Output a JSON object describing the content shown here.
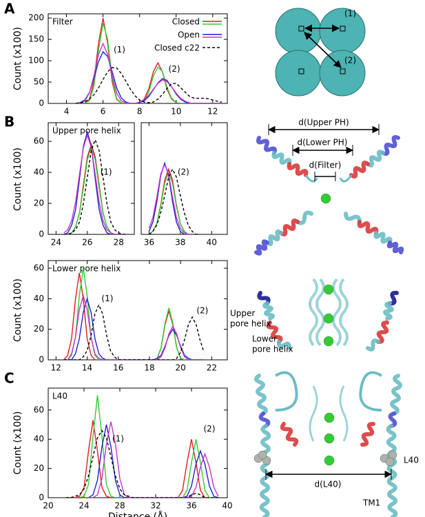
{
  "panel_labels": [
    "A",
    "B",
    "C"
  ],
  "chart_data": [
    {
      "type": "line",
      "title": "Filter",
      "ylabel": "Count (x100)",
      "x": [
        4.5,
        4.75,
        5,
        5.25,
        5.5,
        5.75,
        6,
        6.25,
        6.5,
        6.75,
        7,
        7.25,
        7.5,
        7.75,
        8,
        8.25,
        8.5,
        8.75,
        9,
        9.25,
        9.5,
        9.75,
        10,
        10.25,
        10.5,
        10.75,
        11,
        11.25,
        11.5,
        11.75,
        12,
        12.25,
        12.5
      ],
      "series": [
        {
          "color": "#e41a1c",
          "values": [
            0,
            0,
            1,
            9,
            50,
            141,
            200,
            141,
            50,
            9,
            1,
            0,
            0,
            0,
            2,
            10,
            34,
            74,
            95,
            74,
            34,
            10,
            2,
            0,
            0,
            0,
            0,
            0,
            0,
            0,
            0,
            0,
            0
          ]
        },
        {
          "color": "#2fcc2f",
          "values": [
            0,
            0,
            1,
            6,
            40,
            125,
            188,
            150,
            58,
            11,
            1,
            0,
            0,
            0,
            2,
            7,
            27,
            64,
            85,
            75,
            38,
            12,
            2,
            0,
            0,
            0,
            0,
            0,
            0,
            0,
            0,
            0,
            0
          ]
        },
        {
          "color": "#1f1fd0",
          "values": [
            0,
            2,
            8,
            25,
            58,
            98,
            121,
            110,
            74,
            36,
            13,
            3,
            0,
            0,
            2,
            6,
            16,
            32,
            48,
            58,
            54,
            39,
            22,
            10,
            3,
            0,
            0,
            0,
            0,
            0,
            0,
            0,
            0
          ]
        },
        {
          "color": "#c933c9",
          "values": [
            0,
            0,
            6,
            24,
            64,
            115,
            140,
            115,
            64,
            24,
            6,
            1,
            0,
            0,
            3,
            9,
            19,
            33,
            47,
            55,
            51,
            39,
            24,
            12,
            5,
            1,
            0,
            0,
            0,
            0,
            0,
            0,
            0
          ]
        },
        {
          "color": "#000000",
          "dash": true,
          "values": [
            0,
            1,
            4,
            10,
            20,
            36,
            56,
            74,
            84,
            83,
            70,
            52,
            33,
            18,
            8,
            3,
            2,
            3,
            10,
            21,
            35,
            46,
            47,
            37,
            26,
            16,
            12,
            12,
            12,
            11,
            8,
            5,
            3
          ]
        }
      ],
      "legend": [
        {
          "label": "Closed",
          "colors": [
            "#e41a1c",
            "#2fcc2f"
          ]
        },
        {
          "label": "Open",
          "colors": [
            "#1f1fd0",
            "#c933c9"
          ]
        },
        {
          "label": "Closed c22",
          "colors": [
            "#000000"
          ],
          "dash": true
        }
      ],
      "annotations": [
        "(1)",
        "(2)"
      ],
      "xlim": [
        3,
        12.8
      ],
      "ylim": [
        0,
        210
      ],
      "xticks": [
        4,
        6,
        8,
        10,
        12
      ],
      "yticks": [
        0,
        50,
        100,
        150,
        200
      ]
    },
    {
      "type": "line",
      "title": "Upper pore helix",
      "ylabel": "Count (x100)",
      "x": [
        24.5,
        24.75,
        25,
        25.25,
        25.5,
        25.75,
        26,
        26.25,
        26.5,
        26.75,
        27,
        27.25,
        27.5,
        27.75,
        28,
        28.25,
        28.5
      ],
      "series": [
        {
          "color": "#e41a1c",
          "values": [
            0,
            0,
            1,
            5,
            14,
            32,
            50,
            58,
            50,
            32,
            14,
            5,
            1,
            0,
            0,
            0,
            0
          ]
        },
        {
          "color": "#2fcc2f",
          "values": [
            0,
            0,
            1,
            5,
            14,
            30,
            48,
            56,
            48,
            30,
            14,
            5,
            1,
            0,
            0,
            0,
            0
          ]
        },
        {
          "color": "#1f1fd0",
          "values": [
            0,
            1,
            6,
            16,
            36,
            57,
            66,
            57,
            36,
            16,
            6,
            1,
            0,
            0,
            0,
            0,
            0
          ]
        },
        {
          "color": "#c933c9",
          "values": [
            1,
            3,
            9,
            21,
            39,
            56,
            64,
            56,
            39,
            21,
            9,
            3,
            1,
            0,
            0,
            0,
            0
          ]
        },
        {
          "color": "#000000",
          "dash": true,
          "values": [
            0,
            0,
            1,
            3,
            8,
            20,
            37,
            54,
            61,
            54,
            37,
            20,
            8,
            3,
            1,
            0,
            0
          ]
        }
      ],
      "annotations": [
        "(1)"
      ],
      "xlim": [
        23.5,
        29
      ],
      "ylim": [
        0,
        72
      ],
      "xticks": [
        24,
        26,
        28
      ],
      "yticks": [
        0,
        20,
        40,
        60
      ]
    },
    {
      "type": "line",
      "x": [
        36,
        36.25,
        36.5,
        36.75,
        37,
        37.25,
        37.5,
        37.75,
        38,
        38.25,
        38.5,
        38.75,
        39,
        39.25
      ],
      "series": [
        {
          "color": "#e41a1c",
          "values": [
            0,
            2,
            7,
            19,
            35,
            42,
            35,
            19,
            7,
            2,
            0,
            0,
            0,
            0
          ]
        },
        {
          "color": "#2fcc2f",
          "values": [
            0,
            2,
            7,
            18,
            33,
            40,
            33,
            18,
            7,
            2,
            0,
            0,
            0,
            0
          ]
        },
        {
          "color": "#1f1fd0",
          "values": [
            2,
            8,
            21,
            38,
            46,
            38,
            21,
            8,
            2,
            0,
            0,
            0,
            0,
            0
          ]
        },
        {
          "color": "#c933c9",
          "values": [
            4,
            11,
            24,
            39,
            45,
            39,
            24,
            11,
            4,
            1,
            0,
            0,
            0,
            0
          ]
        },
        {
          "color": "#000000",
          "dash": true,
          "values": [
            0,
            2,
            6,
            14,
            25,
            37,
            42,
            37,
            25,
            14,
            6,
            2,
            0,
            0
          ]
        }
      ],
      "annotations": [
        "(2)"
      ],
      "xlim": [
        35.5,
        41
      ],
      "ylim": [
        0,
        72
      ],
      "xticks": [
        36,
        38,
        40
      ]
    },
    {
      "type": "line",
      "title": "Lower pore helix",
      "ylabel": "Count (x100)",
      "x": [
        12.5,
        12.75,
        13,
        13.25,
        13.5,
        13.75,
        14,
        14.25,
        14.5,
        14.75,
        15,
        15.25,
        15.5,
        15.75,
        16,
        16.25,
        16.5,
        16.75,
        17,
        17.25,
        17.5,
        17.75,
        18,
        18.25,
        18.5,
        18.75,
        19,
        19.25,
        19.5,
        19.75,
        20,
        20.25,
        20.5,
        20.75,
        21,
        21.25,
        21.5
      ],
      "series": [
        {
          "color": "#e41a1c",
          "values": [
            0,
            3,
            14,
            40,
            57,
            40,
            14,
            3,
            0,
            0,
            0,
            0,
            0,
            0,
            0,
            0,
            0,
            0,
            0,
            0,
            0,
            0,
            0,
            0,
            1,
            8,
            23,
            32,
            23,
            8,
            1,
            0,
            0,
            0,
            0,
            0,
            0
          ]
        },
        {
          "color": "#2fcc2f",
          "values": [
            0,
            0,
            3,
            15,
            42,
            60,
            42,
            15,
            3,
            0,
            0,
            0,
            0,
            0,
            0,
            0,
            0,
            0,
            0,
            0,
            0,
            0,
            0,
            0,
            1,
            8,
            24,
            34,
            24,
            8,
            1,
            0,
            0,
            0,
            0,
            0,
            0
          ]
        },
        {
          "color": "#1f1fd0",
          "values": [
            0,
            0,
            0,
            4,
            14,
            31,
            40,
            31,
            14,
            4,
            1,
            0,
            0,
            0,
            0,
            0,
            0,
            0,
            0,
            0,
            0,
            0,
            0,
            0,
            1,
            3,
            9,
            16,
            20,
            16,
            9,
            3,
            1,
            0,
            0,
            0,
            0
          ]
        },
        {
          "color": "#c933c9",
          "values": [
            0,
            0,
            4,
            15,
            33,
            42,
            33,
            15,
            4,
            1,
            0,
            0,
            0,
            0,
            0,
            0,
            0,
            0,
            0,
            0,
            0,
            0,
            0,
            0,
            0,
            2,
            8,
            17,
            22,
            17,
            8,
            2,
            0,
            0,
            0,
            0,
            0
          ]
        },
        {
          "color": "#000000",
          "dash": true,
          "values": [
            0,
            0,
            0,
            0,
            0,
            2,
            6,
            16,
            30,
            36,
            30,
            16,
            6,
            2,
            0,
            0,
            0,
            0,
            0,
            0,
            0,
            0,
            0,
            0,
            0,
            0,
            0,
            0,
            0,
            1,
            5,
            13,
            23,
            28,
            23,
            13,
            5
          ]
        }
      ],
      "annotations": [
        "(1)",
        "(2)"
      ],
      "xlim": [
        11.5,
        23
      ],
      "ylim": [
        0,
        65
      ],
      "xticks": [
        12,
        14,
        16,
        18,
        20,
        22
      ],
      "yticks": [
        0,
        20,
        40,
        60
      ]
    },
    {
      "type": "line",
      "title": "L40",
      "ylabel": "Count (x100)",
      "xlabel": "Distance (Å)",
      "x": [
        22,
        22.5,
        23,
        23.5,
        24,
        24.5,
        25,
        25.5,
        26,
        26.5,
        27,
        27.5,
        28,
        28.5,
        29,
        29.5,
        30,
        30.5,
        31,
        31.5,
        32,
        32.5,
        33,
        33.5,
        34,
        34.5,
        35,
        35.5,
        36,
        36.5,
        37,
        37.5,
        38,
        38.5,
        39
      ],
      "series": [
        {
          "color": "#e41a1c",
          "values": [
            0,
            0,
            0,
            1,
            7,
            32,
            53,
            32,
            7,
            1,
            0,
            0,
            0,
            0,
            0,
            0,
            0,
            0,
            0,
            0,
            0,
            0,
            0,
            0,
            0,
            0,
            5,
            24,
            40,
            24,
            5,
            0,
            0,
            0,
            0
          ]
        },
        {
          "color": "#2fcc2f",
          "values": [
            0,
            0,
            0,
            0,
            1,
            9,
            42,
            70,
            42,
            9,
            1,
            0,
            0,
            0,
            0,
            0,
            0,
            0,
            0,
            0,
            0,
            0,
            0,
            0,
            0,
            0,
            0,
            5,
            24,
            40,
            24,
            5,
            0,
            0,
            0
          ]
        },
        {
          "color": "#1f1fd0",
          "values": [
            0,
            0,
            0,
            0,
            0,
            0,
            2,
            12,
            35,
            50,
            35,
            12,
            2,
            0,
            0,
            0,
            0,
            0,
            0,
            0,
            0,
            0,
            0,
            0,
            0,
            0,
            0,
            1,
            8,
            23,
            32,
            23,
            8,
            1,
            0
          ]
        },
        {
          "color": "#c933c9",
          "values": [
            0,
            0,
            0,
            0,
            0,
            0,
            0,
            2,
            13,
            37,
            52,
            37,
            13,
            2,
            0,
            0,
            0,
            0,
            0,
            0,
            0,
            0,
            0,
            0,
            0,
            0,
            0,
            0,
            1,
            7,
            21,
            30,
            21,
            7,
            1
          ]
        },
        {
          "color": "#000000",
          "dash": true,
          "values": [
            0,
            0,
            1,
            2,
            6,
            15,
            28,
            41,
            46,
            41,
            28,
            15,
            6,
            2,
            1,
            0,
            0,
            0,
            0,
            0,
            0,
            0,
            0,
            0,
            0,
            0,
            0,
            0,
            2,
            3,
            2,
            0,
            0,
            0,
            0
          ]
        }
      ],
      "annotations": [
        "(1)",
        "(2)"
      ],
      "xlim": [
        20,
        40
      ],
      "ylim": [
        0,
        75
      ],
      "xticks": [
        20,
        24,
        28,
        32,
        36,
        40
      ],
      "yticks": [
        0,
        20,
        40,
        60
      ]
    }
  ],
  "diagrams": {
    "filter_schematic": {
      "labels": [
        "(1)",
        "(2)"
      ]
    },
    "pore_helix_top": {
      "labels": [
        "d(Upper PH)",
        "d(Lower PH)",
        "d(Filter)"
      ]
    },
    "pore_helix_side": {
      "upper_label": [
        "Upper",
        "pore helix"
      ],
      "lower_label": [
        "Lower",
        "pore helix"
      ]
    },
    "l40_view": {
      "residue": "L40",
      "distance": "d(L40)",
      "helix": "TM1"
    }
  }
}
